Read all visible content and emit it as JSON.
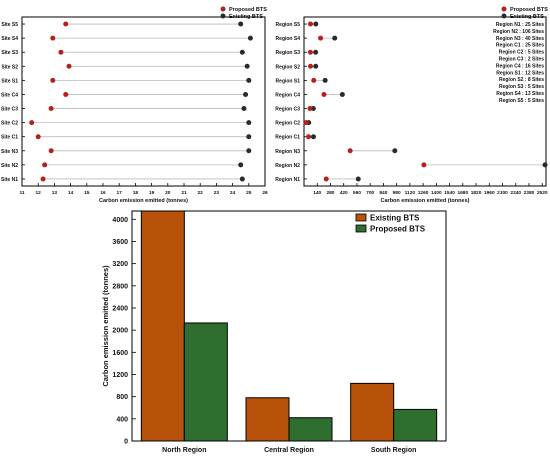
{
  "colors": {
    "proposed": "#b81f1a",
    "existing": "#2a2a2a",
    "bar_existing": "#b8520a",
    "bar_proposed": "#2e6e2e"
  },
  "chart_data": [
    {
      "type": "scatter",
      "subtype": "dumbbell",
      "xlabel": "Carbon emission emitted (tonnes)",
      "ylabel": "",
      "xlim": [
        11,
        26
      ],
      "xticks": [
        11,
        12,
        13,
        14,
        15,
        16,
        17,
        18,
        19,
        20,
        21,
        22,
        23,
        24,
        25,
        26
      ],
      "grid": false,
      "legend_position": "top-right",
      "categories": [
        "Site S5",
        "Site S4",
        "Site S3",
        "Site S2",
        "Site S1",
        "Site C4",
        "Site C3",
        "Site C2",
        "Site C1",
        "Site N3",
        "Site N2",
        "Site N1"
      ],
      "series": [
        {
          "name": "Proposed BTS",
          "values": [
            13.7,
            12.9,
            13.4,
            13.9,
            12.9,
            13.7,
            12.8,
            11.6,
            12.0,
            12.8,
            12.4,
            12.3
          ]
        },
        {
          "name": "Existing BTS",
          "values": [
            24.5,
            25.1,
            24.6,
            24.9,
            25.0,
            24.8,
            24.7,
            25.0,
            25.0,
            25.0,
            24.5,
            24.6
          ]
        }
      ]
    },
    {
      "type": "scatter",
      "subtype": "dumbbell",
      "xlabel": "Carbon emission emitted (tonnes)",
      "ylabel": "",
      "xlim": [
        0,
        2560
      ],
      "xticks": [
        140,
        280,
        420,
        560,
        700,
        840,
        980,
        1120,
        1260,
        1400,
        1540,
        1680,
        1820,
        1960,
        2100,
        2240,
        2380,
        2520
      ],
      "grid": false,
      "legend_position": "top-right",
      "categories": [
        "Region S5",
        "Region S4",
        "Region S3",
        "Region S2",
        "Region S1",
        "Region C4",
        "Region C3",
        "Region C2",
        "Region C1",
        "Region N3",
        "Region N2",
        "Region N1"
      ],
      "series": [
        {
          "name": "Proposed BTS",
          "values": [
            69,
            175,
            68,
            69,
            103,
            211,
            64,
            23,
            48,
            488,
            1268,
            235
          ]
        },
        {
          "name": "Existing BTS",
          "values": [
            125,
            325,
            123,
            124,
            224,
            406,
            99,
            50,
            100,
            961,
            2550,
            574
          ]
        }
      ],
      "annotations": [
        "Region N1 :  25 Sites",
        "Region N2 : 106 Sites",
        "Region N3 :  40 Sites",
        "Region C1 :  25 Sites",
        "Region C2 :    5 Sites",
        "Region C3 :    2 Sites",
        "Region C4 :  16 Sites",
        "Region S1 :  12 Sites",
        "Region S2 :    8 Sites",
        "Region S3 :    5 Sites",
        "Region S4 :  13 Sites",
        "Region S5 :    5 Sites"
      ]
    },
    {
      "type": "bar",
      "categories": [
        "North Region",
        "Central Region",
        "South Region"
      ],
      "series": [
        {
          "name": "Existing BTS",
          "values": [
            4150,
            780,
            1040
          ]
        },
        {
          "name": "Proposed BTS",
          "values": [
            2130,
            420,
            570
          ]
        }
      ],
      "xlabel": "",
      "ylabel": "Carbon emission emitted (tonnes)",
      "ylim": [
        0,
        4150
      ],
      "yticks": [
        0,
        400,
        800,
        1200,
        1600,
        2000,
        2400,
        2800,
        3200,
        3600,
        4000
      ],
      "legend_position": "top-right",
      "grid": false
    }
  ]
}
